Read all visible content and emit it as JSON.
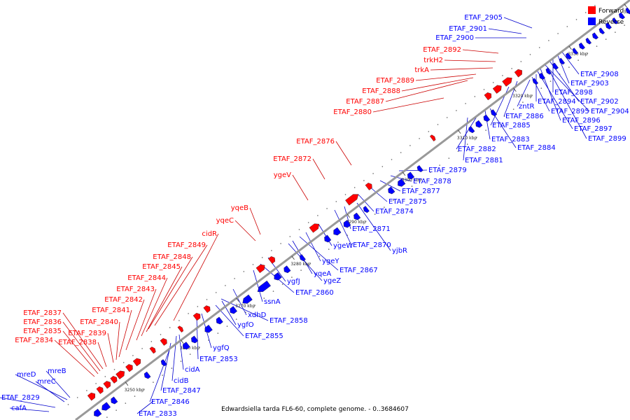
{
  "caption": "Edwardsiella tarda FL6-60, complete genome. - 0..3684607",
  "legend": [
    {
      "label": "Forward",
      "color": "#ff0000"
    },
    {
      "label": "Reverse",
      "color": "#0000ff"
    }
  ],
  "colors": {
    "forward": "#ff0000",
    "reverse": "#0000ff",
    "axis": "#888888",
    "forward_line": "#cc0000",
    "reverse_line": "#0000cc"
  },
  "axis": {
    "unit": "kbp",
    "ticks": [
      3250,
      3260,
      3270,
      3280,
      3290,
      3300,
      3310,
      3320,
      3330,
      3340
    ]
  },
  "forward_labels": [
    "ETAF_2892",
    "trkH2",
    "trkA",
    "ETAF_2889",
    "ETAF_2888",
    "ETAF_2887",
    "ETAF_2880",
    "ETAF_2876",
    "ETAF_2872",
    "ygeV",
    "yqeB",
    "yqeC",
    "cidR",
    "ETAF_2849",
    "ETAF_2848",
    "ETAF_2845",
    "ETAF_2844",
    "ETAF_2843",
    "ETAF_2842",
    "ETAF_2841",
    "ETAF_2840",
    "ETAF_2839",
    "ETAF_2838",
    "ETAF_2837",
    "ETAF_2836",
    "ETAF_2835",
    "ETAF_2834"
  ],
  "reverse_labels": [
    "ETAF_2905",
    "ETAF_2901",
    "ETAF_2900",
    "ETAF_2908",
    "ETAF_2903",
    "ETAF_2898",
    "ETAF_2902",
    "ETAF_2894",
    "zntR",
    "ETAF_2904",
    "ETAF_2895",
    "ETAF_2886",
    "ETAF_2896",
    "ETAF_2885",
    "ETAF_2897",
    "ETAF_2899",
    "ETAF_2883",
    "ETAF_2884",
    "ETAF_2882",
    "ETAF_2881",
    "ETAF_2879",
    "ETAF_2878",
    "ETAF_2877",
    "ETAF_2875",
    "ETAF_2874",
    "ETAF_2871",
    "ETAF_2870",
    "yjbR",
    "ygeW",
    "ygeY",
    "ETAF_2867",
    "yqeA",
    "ygeZ",
    "ygfJ",
    "ETAF_2860",
    "ssnA",
    "xdhD",
    "ETAF_2858",
    "ygfO",
    "ETAF_2855",
    "ygfQ",
    "ETAF_2853",
    "cidA",
    "cidB",
    "ETAF_2847",
    "ETAF_2846",
    "ETAF_2833",
    "mreB",
    "mreD",
    "mreC",
    "ETAF_2829",
    "cafA"
  ]
}
